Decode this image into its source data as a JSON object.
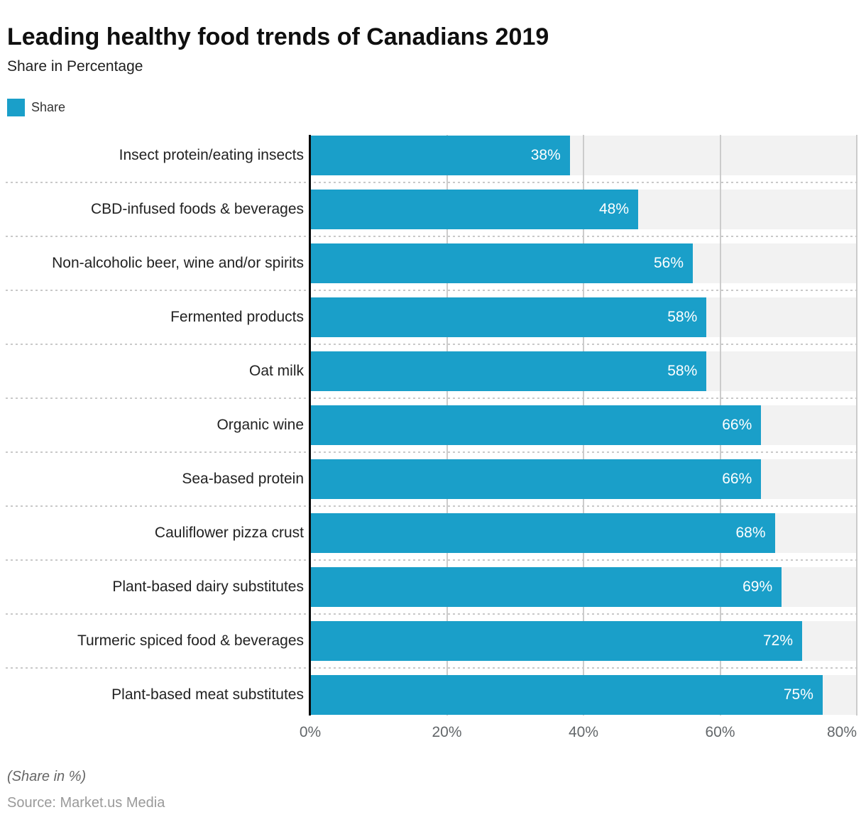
{
  "header": {
    "title": "Leading healthy food trends of Canadians 2019",
    "subtitle": "Share in Percentage"
  },
  "legend": {
    "items": [
      {
        "label": "Share",
        "color": "#1a9fc9"
      }
    ]
  },
  "chart_data": {
    "type": "bar",
    "orientation": "horizontal",
    "title": "Leading healthy food trends of Canadians 2019",
    "categories": [
      "Insect protein/eating insects",
      "CBD-infused foods & beverages",
      "Non-alcoholic beer, wine and/or spirits",
      "Fermented products",
      "Oat milk",
      "Organic wine",
      "Sea-based protein",
      "Cauliflower pizza crust",
      "Plant-based dairy substitutes",
      "Turmeric spiced food & beverages",
      "Plant-based meat substitutes"
    ],
    "series": [
      {
        "name": "Share",
        "values": [
          38,
          48,
          56,
          58,
          58,
          66,
          66,
          68,
          69,
          72,
          75
        ]
      }
    ],
    "value_suffix": "%",
    "data_labels": "inside-end",
    "xlabel": "",
    "ylabel": "",
    "xlim": [
      0,
      80
    ],
    "xticks": {
      "values": [
        0,
        20,
        40,
        60,
        80
      ],
      "labels": [
        "0%",
        "20%",
        "40%",
        "60%",
        "80%"
      ]
    },
    "grid": "vertical",
    "legend_position": "top-left",
    "colors": {
      "bar": "#1a9fc9",
      "track": "#f2f2f2",
      "gridline": "#cccccc",
      "separator": "#c9c9c9",
      "axis_line": "#0a0a0a"
    }
  },
  "footer": {
    "note": "(Share in %)",
    "source": "Source: Market.us Media"
  }
}
